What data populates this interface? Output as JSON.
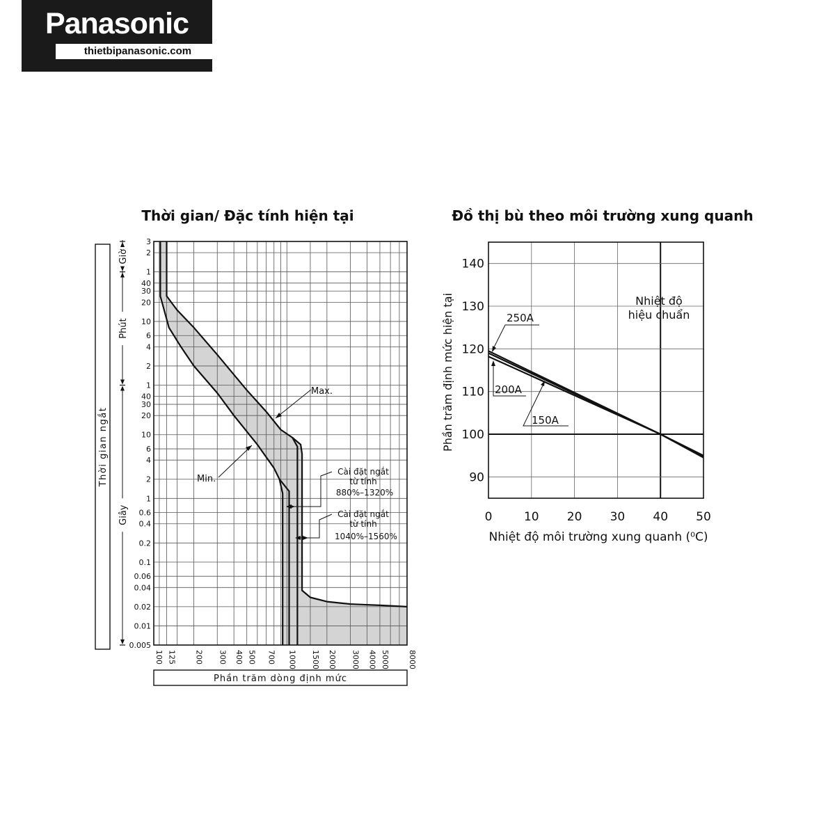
{
  "logo": {
    "brand": "Panasonic",
    "site": "thietbipanasonic.com"
  },
  "chart_data": [
    {
      "type": "line",
      "title": "Thời gian/ Đặc tính hiện tại",
      "xlabel": "Phần trăm dòng định mức",
      "ylabel": "Thời gian ngắt",
      "x_scale": "log",
      "y_scale": "log",
      "xlim": [
        100,
        8000
      ],
      "ylim_seconds": [
        0.005,
        10800
      ],
      "x_ticks": [
        100,
        125,
        200,
        300,
        400,
        500,
        700,
        1000,
        1500,
        2000,
        3000,
        4000,
        5000,
        8000
      ],
      "y_ticks": [
        {
          "label": "3",
          "unit": "h"
        },
        {
          "label": "2",
          "unit": "h"
        },
        {
          "label": "1",
          "unit": "h"
        },
        {
          "label": "40",
          "unit": "min"
        },
        {
          "label": "30",
          "unit": "min"
        },
        {
          "label": "20",
          "unit": "min"
        },
        {
          "label": "10",
          "unit": "min"
        },
        {
          "label": "6",
          "unit": "min"
        },
        {
          "label": "4",
          "unit": "min"
        },
        {
          "label": "2",
          "unit": "min"
        },
        {
          "label": "1",
          "unit": "min"
        },
        {
          "label": "40",
          "unit": "s"
        },
        {
          "label": "30",
          "unit": "s"
        },
        {
          "label": "20",
          "unit": "s"
        },
        {
          "label": "10",
          "unit": "s"
        },
        {
          "label": "6",
          "unit": "s"
        },
        {
          "label": "4",
          "unit": "s"
        },
        {
          "label": "2",
          "unit": "s"
        },
        {
          "label": "1",
          "unit": "s"
        },
        {
          "label": "0.6",
          "unit": "s"
        },
        {
          "label": "0.4",
          "unit": "s"
        },
        {
          "label": "0.2",
          "unit": "s"
        },
        {
          "label": "0.1",
          "unit": "s"
        },
        {
          "label": "0.06",
          "unit": "s"
        },
        {
          "label": "0.04",
          "unit": "s"
        },
        {
          "label": "0.02",
          "unit": "s"
        },
        {
          "label": "0.01",
          "unit": "s"
        },
        {
          "label": "0.005",
          "unit": "s"
        }
      ],
      "time_units": [
        {
          "label": "Giờ",
          "from_s": 3600,
          "to_s": 10800
        },
        {
          "label": "Phút",
          "from_s": 60,
          "to_s": 3600
        },
        {
          "label": "Giây",
          "from_s": 0.005,
          "to_s": 60
        }
      ],
      "series": [
        {
          "name": "Max.",
          "points": [
            [
              125,
              10800
            ],
            [
              125,
              1500
            ],
            [
              150,
              900
            ],
            [
              200,
              480
            ],
            [
              300,
              180
            ],
            [
              500,
              50
            ],
            [
              700,
              23
            ],
            [
              900,
              12
            ],
            [
              1100,
              9
            ],
            [
              1270,
              7
            ],
            [
              1300,
              5
            ],
            [
              1300,
              0.036
            ],
            [
              1500,
              0.028
            ],
            [
              2000,
              0.024
            ],
            [
              3000,
              0.022
            ],
            [
              5000,
              0.021
            ],
            [
              8000,
              0.02
            ]
          ]
        },
        {
          "name": "Min.",
          "points": [
            [
              112,
              10800
            ],
            [
              112,
              1500
            ],
            [
              130,
              480
            ],
            [
              160,
              240
            ],
            [
              200,
              120
            ],
            [
              300,
              45
            ],
            [
              400,
              20
            ],
            [
              600,
              7
            ],
            [
              800,
              3
            ],
            [
              880,
              2
            ],
            [
              930,
              1.2
            ],
            [
              930,
              0.005
            ]
          ]
        },
        {
          "name": "",
          "points": [
            [
              1100,
              9
            ],
            [
              1200,
              6.5
            ],
            [
              1200,
              0.005
            ]
          ]
        },
        {
          "name": "",
          "points": [
            [
              880,
              2
            ],
            [
              1040,
              1.3
            ],
            [
              1040,
              0.005
            ]
          ]
        }
      ],
      "shaded_band": "between Min. and Max.",
      "annotations": [
        {
          "text": "Max."
        },
        {
          "text": "Min."
        },
        {
          "lines": [
            "Cài đặt ngắt",
            "từ tính",
            "880%–1320%"
          ]
        },
        {
          "lines": [
            "Cài đặt ngắt",
            "từ tính",
            "1040%–1560%"
          ]
        }
      ]
    },
    {
      "type": "line",
      "title": "Đồ thị bù theo môi trường xung quanh",
      "xlabel": "Nhiệt độ môi trường xung quanh (⁰C)",
      "ylabel": "Phần trăm định mức hiện tại",
      "xlim": [
        0,
        50
      ],
      "ylim": [
        85,
        145
      ],
      "x_ticks": [
        0,
        10,
        20,
        30,
        40,
        50
      ],
      "y_ticks": [
        90,
        100,
        110,
        120,
        130,
        140
      ],
      "grid": true,
      "series": [
        {
          "name": "250A",
          "x": [
            0,
            40,
            50
          ],
          "y": [
            119.5,
            100,
            95
          ]
        },
        {
          "name": "200A",
          "x": [
            0,
            40,
            50
          ],
          "y": [
            119,
            100,
            94.8
          ]
        },
        {
          "name": "150A",
          "x": [
            0,
            40,
            50
          ],
          "y": [
            118.2,
            100,
            94.5
          ]
        }
      ],
      "reference_line": {
        "x": 40,
        "y": 100,
        "label": [
          "Nhiệt độ",
          "hiệu chuẩn"
        ]
      }
    }
  ]
}
